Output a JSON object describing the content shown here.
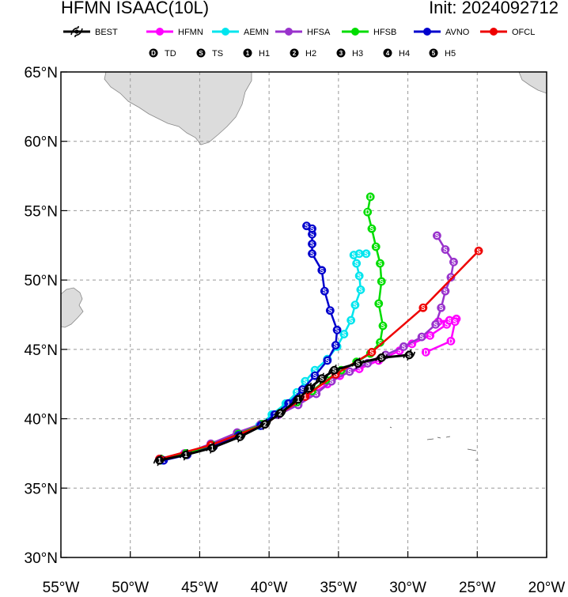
{
  "title_left": "HFMN ISAAC(10L)",
  "title_right": "Init: 2024092712",
  "legend": {
    "models": [
      {
        "name": "BEST",
        "color": "#000000"
      },
      {
        "name": "HFMN",
        "color": "#ff00ff"
      },
      {
        "name": "AEMN",
        "color": "#00e5ee"
      },
      {
        "name": "HFSA",
        "color": "#9932cc"
      },
      {
        "name": "HFSB",
        "color": "#00dd00"
      },
      {
        "name": "AVNO",
        "color": "#0000cd"
      },
      {
        "name": "OFCL",
        "color": "#ee0000"
      }
    ],
    "intensity": [
      {
        "symbol": "D",
        "label": "TD"
      },
      {
        "symbol": "S",
        "label": "TS"
      },
      {
        "symbol": "1",
        "label": "H1"
      },
      {
        "symbol": "2",
        "label": "H2"
      },
      {
        "symbol": "3",
        "label": "H3"
      },
      {
        "symbol": "4",
        "label": "H4"
      },
      {
        "symbol": "5",
        "label": "H5"
      }
    ]
  },
  "chart_data": {
    "type": "line",
    "title": "HFMN ISAAC(10L)",
    "subtitle": "Init: 2024092712",
    "xlim": [
      -55,
      -20
    ],
    "ylim": [
      30,
      65
    ],
    "x_ticks": [
      -55,
      -50,
      -45,
      -40,
      -35,
      -30,
      -25,
      -20
    ],
    "y_ticks": [
      30,
      35,
      40,
      45,
      50,
      55,
      60,
      65
    ],
    "x_tick_labels": [
      "55°W",
      "50°W",
      "45°W",
      "40°W",
      "35°W",
      "30°W",
      "25°W",
      "20°W"
    ],
    "y_tick_labels": [
      "30°N",
      "35°N",
      "40°N",
      "45°N",
      "50°N",
      "55°N",
      "60°N",
      "65°N"
    ],
    "grid": true,
    "legend_position": "top",
    "series": [
      {
        "name": "HFMN",
        "color": "#ff00ff",
        "points": [
          {
            "lon": -47.9,
            "lat": 37.1,
            "i": "1"
          },
          {
            "lon": -46.1,
            "lat": 37.5,
            "i": "1"
          },
          {
            "lon": -44.1,
            "lat": 38.1,
            "i": "1"
          },
          {
            "lon": -42.3,
            "lat": 39.0,
            "i": "2"
          },
          {
            "lon": -40.6,
            "lat": 39.6,
            "i": "2"
          },
          {
            "lon": -39.3,
            "lat": 40.3,
            "i": "2"
          },
          {
            "lon": -38.0,
            "lat": 41.1,
            "i": "S"
          },
          {
            "lon": -36.7,
            "lat": 41.9,
            "i": "S"
          },
          {
            "lon": -35.8,
            "lat": 42.5,
            "i": "S"
          },
          {
            "lon": -34.9,
            "lat": 43.1,
            "i": "S"
          },
          {
            "lon": -33.5,
            "lat": 43.6,
            "i": "S"
          },
          {
            "lon": -32.1,
            "lat": 44.2,
            "i": "S"
          },
          {
            "lon": -30.6,
            "lat": 44.9,
            "i": "S"
          },
          {
            "lon": -29.7,
            "lat": 45.4,
            "i": "S"
          },
          {
            "lon": -28.4,
            "lat": 46.0,
            "i": "S"
          },
          {
            "lon": -27.2,
            "lat": 46.8,
            "i": "S"
          },
          {
            "lon": -26.5,
            "lat": 47.2,
            "i": "S"
          },
          {
            "lon": -27.0,
            "lat": 47.1,
            "i": "S"
          },
          {
            "lon": -27.8,
            "lat": 47.0,
            "i": "S"
          },
          {
            "lon": -26.6,
            "lat": 47.0,
            "i": "S"
          },
          {
            "lon": -26.9,
            "lat": 45.6,
            "i": "D"
          },
          {
            "lon": -28.7,
            "lat": 44.8,
            "i": "D"
          }
        ]
      },
      {
        "name": "AEMN",
        "color": "#00e5ee",
        "points": [
          {
            "lon": -47.8,
            "lat": 37.0,
            "i": "1"
          },
          {
            "lon": -46.0,
            "lat": 37.4,
            "i": "1"
          },
          {
            "lon": -44.0,
            "lat": 38.1,
            "i": "1"
          },
          {
            "lon": -42.1,
            "lat": 38.9,
            "i": "2"
          },
          {
            "lon": -40.7,
            "lat": 39.5,
            "i": "2"
          },
          {
            "lon": -39.8,
            "lat": 40.3,
            "i": "2"
          },
          {
            "lon": -38.8,
            "lat": 41.1,
            "i": "1"
          },
          {
            "lon": -38.0,
            "lat": 41.9,
            "i": "S"
          },
          {
            "lon": -37.4,
            "lat": 42.7,
            "i": "S"
          },
          {
            "lon": -36.7,
            "lat": 43.5,
            "i": "S"
          },
          {
            "lon": -35.8,
            "lat": 44.3,
            "i": "S"
          },
          {
            "lon": -35.1,
            "lat": 45.2,
            "i": "S"
          },
          {
            "lon": -34.6,
            "lat": 46.1,
            "i": "S"
          },
          {
            "lon": -34.1,
            "lat": 47.1,
            "i": "S"
          },
          {
            "lon": -33.8,
            "lat": 48.2,
            "i": "S"
          },
          {
            "lon": -33.4,
            "lat": 49.3,
            "i": "S"
          },
          {
            "lon": -33.5,
            "lat": 50.3,
            "i": "S"
          },
          {
            "lon": -33.7,
            "lat": 51.2,
            "i": "S"
          },
          {
            "lon": -33.9,
            "lat": 51.8,
            "i": "S"
          },
          {
            "lon": -33.5,
            "lat": 51.9,
            "i": "S"
          },
          {
            "lon": -33.0,
            "lat": 51.9,
            "i": "S"
          }
        ]
      },
      {
        "name": "HFSA",
        "color": "#9932cc",
        "points": [
          {
            "lon": -47.8,
            "lat": 37.1,
            "i": "1"
          },
          {
            "lon": -46.0,
            "lat": 37.5,
            "i": "1"
          },
          {
            "lon": -44.2,
            "lat": 38.2,
            "i": "1"
          },
          {
            "lon": -42.3,
            "lat": 39.0,
            "i": "2"
          },
          {
            "lon": -40.6,
            "lat": 39.6,
            "i": "2"
          },
          {
            "lon": -39.3,
            "lat": 40.3,
            "i": "2"
          },
          {
            "lon": -37.9,
            "lat": 41.0,
            "i": "S"
          },
          {
            "lon": -36.6,
            "lat": 41.8,
            "i": "S"
          },
          {
            "lon": -35.5,
            "lat": 42.7,
            "i": "S"
          },
          {
            "lon": -34.2,
            "lat": 43.4,
            "i": "S"
          },
          {
            "lon": -32.9,
            "lat": 44.0,
            "i": "S"
          },
          {
            "lon": -31.6,
            "lat": 44.6,
            "i": "S"
          },
          {
            "lon": -30.3,
            "lat": 45.2,
            "i": "S"
          },
          {
            "lon": -29.0,
            "lat": 45.9,
            "i": "S"
          },
          {
            "lon": -28.0,
            "lat": 46.8,
            "i": "S"
          },
          {
            "lon": -27.6,
            "lat": 48.0,
            "i": "S"
          },
          {
            "lon": -27.3,
            "lat": 49.2,
            "i": "S"
          },
          {
            "lon": -26.9,
            "lat": 50.2,
            "i": "S"
          },
          {
            "lon": -26.7,
            "lat": 51.3,
            "i": "S"
          },
          {
            "lon": -27.3,
            "lat": 52.2,
            "i": "S"
          },
          {
            "lon": -27.9,
            "lat": 53.2,
            "i": "S"
          }
        ]
      },
      {
        "name": "HFSB",
        "color": "#00dd00",
        "points": [
          {
            "lon": -47.8,
            "lat": 37.1,
            "i": "1"
          },
          {
            "lon": -46.0,
            "lat": 37.5,
            "i": "1"
          },
          {
            "lon": -44.1,
            "lat": 38.1,
            "i": "1"
          },
          {
            "lon": -42.2,
            "lat": 38.9,
            "i": "2"
          },
          {
            "lon": -40.5,
            "lat": 39.6,
            "i": "2"
          },
          {
            "lon": -39.2,
            "lat": 40.4,
            "i": "2"
          },
          {
            "lon": -38.0,
            "lat": 41.2,
            "i": "1"
          },
          {
            "lon": -36.9,
            "lat": 42.0,
            "i": "S"
          },
          {
            "lon": -35.9,
            "lat": 42.8,
            "i": "S"
          },
          {
            "lon": -34.8,
            "lat": 43.5,
            "i": "S"
          },
          {
            "lon": -33.7,
            "lat": 44.1,
            "i": "S"
          },
          {
            "lon": -32.7,
            "lat": 44.7,
            "i": "S"
          },
          {
            "lon": -32.0,
            "lat": 45.5,
            "i": "S"
          },
          {
            "lon": -31.8,
            "lat": 46.7,
            "i": "S"
          },
          {
            "lon": -32.1,
            "lat": 48.3,
            "i": "S"
          },
          {
            "lon": -31.9,
            "lat": 49.9,
            "i": "S"
          },
          {
            "lon": -32.0,
            "lat": 51.2,
            "i": "S"
          },
          {
            "lon": -32.3,
            "lat": 52.4,
            "i": "S"
          },
          {
            "lon": -32.6,
            "lat": 53.7,
            "i": "S"
          },
          {
            "lon": -32.9,
            "lat": 54.9,
            "i": "D"
          },
          {
            "lon": -32.7,
            "lat": 56.0,
            "i": "D"
          }
        ]
      },
      {
        "name": "AVNO",
        "color": "#0000cd",
        "points": [
          {
            "lon": -47.6,
            "lat": 37.0,
            "i": "1"
          },
          {
            "lon": -45.9,
            "lat": 37.4,
            "i": "1"
          },
          {
            "lon": -44.0,
            "lat": 38.0,
            "i": "1"
          },
          {
            "lon": -42.2,
            "lat": 38.8,
            "i": "2"
          },
          {
            "lon": -40.6,
            "lat": 39.5,
            "i": "2"
          },
          {
            "lon": -39.6,
            "lat": 40.3,
            "i": "2"
          },
          {
            "lon": -38.6,
            "lat": 41.1,
            "i": "1"
          },
          {
            "lon": -37.6,
            "lat": 42.1,
            "i": "S"
          },
          {
            "lon": -36.7,
            "lat": 43.1,
            "i": "S"
          },
          {
            "lon": -35.8,
            "lat": 44.2,
            "i": "S"
          },
          {
            "lon": -35.2,
            "lat": 45.3,
            "i": "S"
          },
          {
            "lon": -35.1,
            "lat": 46.4,
            "i": "S"
          },
          {
            "lon": -35.6,
            "lat": 47.8,
            "i": "S"
          },
          {
            "lon": -36.0,
            "lat": 49.2,
            "i": "S"
          },
          {
            "lon": -36.2,
            "lat": 50.7,
            "i": "S"
          },
          {
            "lon": -36.9,
            "lat": 51.9,
            "i": "S"
          },
          {
            "lon": -36.9,
            "lat": 52.6,
            "i": "S"
          },
          {
            "lon": -36.9,
            "lat": 53.3,
            "i": "S"
          },
          {
            "lon": -36.9,
            "lat": 53.7,
            "i": "S"
          },
          {
            "lon": -37.3,
            "lat": 53.9,
            "i": "S"
          }
        ]
      },
      {
        "name": "OFCL",
        "color": "#ee0000",
        "points": [
          {
            "lon": -47.9,
            "lat": 37.1,
            "i": "1"
          },
          {
            "lon": -44.2,
            "lat": 38.1,
            "i": "1"
          },
          {
            "lon": -40.3,
            "lat": 39.6,
            "i": "2"
          },
          {
            "lon": -37.4,
            "lat": 41.6,
            "i": "1"
          },
          {
            "lon": -35.2,
            "lat": 43.2,
            "i": "S"
          },
          {
            "lon": -32.6,
            "lat": 44.8,
            "i": "S"
          },
          {
            "lon": -28.9,
            "lat": 48.0,
            "i": "S"
          },
          {
            "lon": -24.9,
            "lat": 52.1,
            "i": "S"
          }
        ]
      },
      {
        "name": "BEST",
        "color": "#000000",
        "points": [
          {
            "lon": -47.9,
            "lat": 37.0,
            "i": "1"
          },
          {
            "lon": -46.0,
            "lat": 37.4,
            "i": "1"
          },
          {
            "lon": -44.1,
            "lat": 37.9,
            "i": "1"
          },
          {
            "lon": -42.1,
            "lat": 38.7,
            "i": "2"
          },
          {
            "lon": -40.3,
            "lat": 39.6,
            "i": "2"
          },
          {
            "lon": -39.2,
            "lat": 40.4,
            "i": "2"
          },
          {
            "lon": -37.9,
            "lat": 41.4,
            "i": "1"
          },
          {
            "lon": -37.1,
            "lat": 42.2,
            "i": "1"
          },
          {
            "lon": -36.2,
            "lat": 42.9,
            "i": "S"
          },
          {
            "lon": -35.3,
            "lat": 43.5,
            "i": "S"
          },
          {
            "lon": -33.6,
            "lat": 44.0,
            "i": "S"
          },
          {
            "lon": -31.9,
            "lat": 44.4,
            "i": "S"
          },
          {
            "lon": -29.9,
            "lat": 44.6,
            "i": "S"
          }
        ]
      }
    ]
  }
}
